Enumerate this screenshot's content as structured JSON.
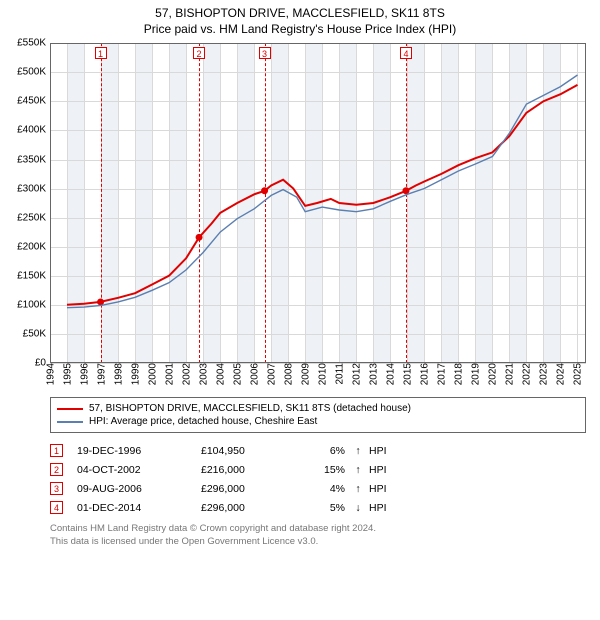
{
  "title_line1": "57, BISHOPTON DRIVE, MACCLESFIELD, SK11 8TS",
  "title_line2": "Price paid vs. HM Land Registry's House Price Index (HPI)",
  "chart": {
    "type": "line",
    "background_color": "#ffffff",
    "grid_color_major": "#d9d9d9",
    "grid_color_shade": "#eef2f7",
    "axis_color": "#666666",
    "x_min": 1994,
    "x_max": 2025.5,
    "x_ticks": [
      1994,
      1995,
      1996,
      1997,
      1998,
      1999,
      2000,
      2001,
      2002,
      2003,
      2004,
      2005,
      2006,
      2007,
      2008,
      2009,
      2010,
      2011,
      2012,
      2013,
      2014,
      2015,
      2016,
      2017,
      2018,
      2019,
      2020,
      2021,
      2022,
      2023,
      2024,
      2025
    ],
    "x_shade_pairs": [
      [
        1995,
        1996
      ],
      [
        1997,
        1998
      ],
      [
        1999,
        2000
      ],
      [
        2001,
        2002
      ],
      [
        2003,
        2004
      ],
      [
        2005,
        2006
      ],
      [
        2007,
        2008
      ],
      [
        2009,
        2010
      ],
      [
        2011,
        2012
      ],
      [
        2013,
        2014
      ],
      [
        2015,
        2016
      ],
      [
        2017,
        2018
      ],
      [
        2019,
        2020
      ],
      [
        2021,
        2022
      ],
      [
        2023,
        2024
      ]
    ],
    "y_min": 0,
    "y_max": 550000,
    "y_ticks": [
      {
        "v": 0,
        "label": "£0"
      },
      {
        "v": 50000,
        "label": "£50K"
      },
      {
        "v": 100000,
        "label": "£100K"
      },
      {
        "v": 150000,
        "label": "£150K"
      },
      {
        "v": 200000,
        "label": "£200K"
      },
      {
        "v": 250000,
        "label": "£250K"
      },
      {
        "v": 300000,
        "label": "£300K"
      },
      {
        "v": 350000,
        "label": "£350K"
      },
      {
        "v": 400000,
        "label": "£400K"
      },
      {
        "v": 450000,
        "label": "£450K"
      },
      {
        "v": 500000,
        "label": "£500K"
      },
      {
        "v": 550000,
        "label": "£550K"
      }
    ],
    "series": [
      {
        "name": "57, BISHOPTON DRIVE, MACCLESFIELD, SK11 8TS (detached house)",
        "color": "#e00000",
        "width": 2,
        "points": [
          [
            1995.0,
            100000
          ],
          [
            1996.0,
            102000
          ],
          [
            1996.97,
            104950
          ],
          [
            1998.0,
            112000
          ],
          [
            1999.0,
            120000
          ],
          [
            2000.0,
            135000
          ],
          [
            2001.0,
            150000
          ],
          [
            2002.0,
            180000
          ],
          [
            2002.76,
            216000
          ],
          [
            2003.5,
            240000
          ],
          [
            2004.0,
            258000
          ],
          [
            2005.0,
            275000
          ],
          [
            2006.0,
            290000
          ],
          [
            2006.61,
            296000
          ],
          [
            2007.0,
            305000
          ],
          [
            2007.7,
            315000
          ],
          [
            2008.3,
            300000
          ],
          [
            2009.0,
            270000
          ],
          [
            2009.7,
            275000
          ],
          [
            2010.5,
            282000
          ],
          [
            2011.0,
            275000
          ],
          [
            2012.0,
            272000
          ],
          [
            2013.0,
            275000
          ],
          [
            2014.0,
            285000
          ],
          [
            2014.92,
            296000
          ],
          [
            2015.5,
            305000
          ],
          [
            2016.0,
            312000
          ],
          [
            2017.0,
            325000
          ],
          [
            2018.0,
            340000
          ],
          [
            2019.0,
            352000
          ],
          [
            2020.0,
            362000
          ],
          [
            2021.0,
            390000
          ],
          [
            2022.0,
            430000
          ],
          [
            2023.0,
            450000
          ],
          [
            2024.0,
            462000
          ],
          [
            2025.0,
            478000
          ]
        ],
        "markers": [
          {
            "x": 1996.97,
            "y": 104950
          },
          {
            "x": 2002.76,
            "y": 216000
          },
          {
            "x": 2006.61,
            "y": 296000
          },
          {
            "x": 2014.92,
            "y": 296000
          }
        ]
      },
      {
        "name": "HPI: Average price, detached house, Cheshire East",
        "color": "#5b7fb0",
        "width": 1.4,
        "points": [
          [
            1995.0,
            95000
          ],
          [
            1996.0,
            96000
          ],
          [
            1997.0,
            99000
          ],
          [
            1998.0,
            105000
          ],
          [
            1999.0,
            113000
          ],
          [
            2000.0,
            125000
          ],
          [
            2001.0,
            138000
          ],
          [
            2002.0,
            160000
          ],
          [
            2003.0,
            190000
          ],
          [
            2004.0,
            225000
          ],
          [
            2005.0,
            248000
          ],
          [
            2006.0,
            265000
          ],
          [
            2007.0,
            288000
          ],
          [
            2007.7,
            298000
          ],
          [
            2008.5,
            285000
          ],
          [
            2009.0,
            260000
          ],
          [
            2010.0,
            268000
          ],
          [
            2011.0,
            263000
          ],
          [
            2012.0,
            260000
          ],
          [
            2013.0,
            265000
          ],
          [
            2014.0,
            278000
          ],
          [
            2015.0,
            290000
          ],
          [
            2016.0,
            300000
          ],
          [
            2017.0,
            315000
          ],
          [
            2018.0,
            330000
          ],
          [
            2019.0,
            342000
          ],
          [
            2020.0,
            355000
          ],
          [
            2021.0,
            395000
          ],
          [
            2022.0,
            445000
          ],
          [
            2023.0,
            460000
          ],
          [
            2024.0,
            475000
          ],
          [
            2025.0,
            495000
          ]
        ]
      }
    ],
    "event_lines": [
      {
        "n": "1",
        "x": 1996.97,
        "color": "#e00000"
      },
      {
        "n": "2",
        "x": 2002.76,
        "color": "#e00000"
      },
      {
        "n": "3",
        "x": 2006.61,
        "color": "#e00000"
      },
      {
        "n": "4",
        "x": 2014.92,
        "color": "#e00000"
      }
    ]
  },
  "legend": {
    "items": [
      {
        "color": "#e00000",
        "label": "57, BISHOPTON DRIVE, MACCLESFIELD, SK11 8TS (detached house)"
      },
      {
        "color": "#5b7fb0",
        "label": "HPI: Average price, detached house, Cheshire East"
      }
    ]
  },
  "events": [
    {
      "n": "1",
      "date": "19-DEC-1996",
      "price": "£104,950",
      "pct": "6%",
      "dir": "↑",
      "suffix": "HPI"
    },
    {
      "n": "2",
      "date": "04-OCT-2002",
      "price": "£216,000",
      "pct": "15%",
      "dir": "↑",
      "suffix": "HPI"
    },
    {
      "n": "3",
      "date": "09-AUG-2006",
      "price": "£296,000",
      "pct": "4%",
      "dir": "↑",
      "suffix": "HPI"
    },
    {
      "n": "4",
      "date": "01-DEC-2014",
      "price": "£296,000",
      "pct": "5%",
      "dir": "↓",
      "suffix": "HPI"
    }
  ],
  "footer_line1": "Contains HM Land Registry data © Crown copyright and database right 2024.",
  "footer_line2": "This data is licensed under the Open Government Licence v3.0."
}
